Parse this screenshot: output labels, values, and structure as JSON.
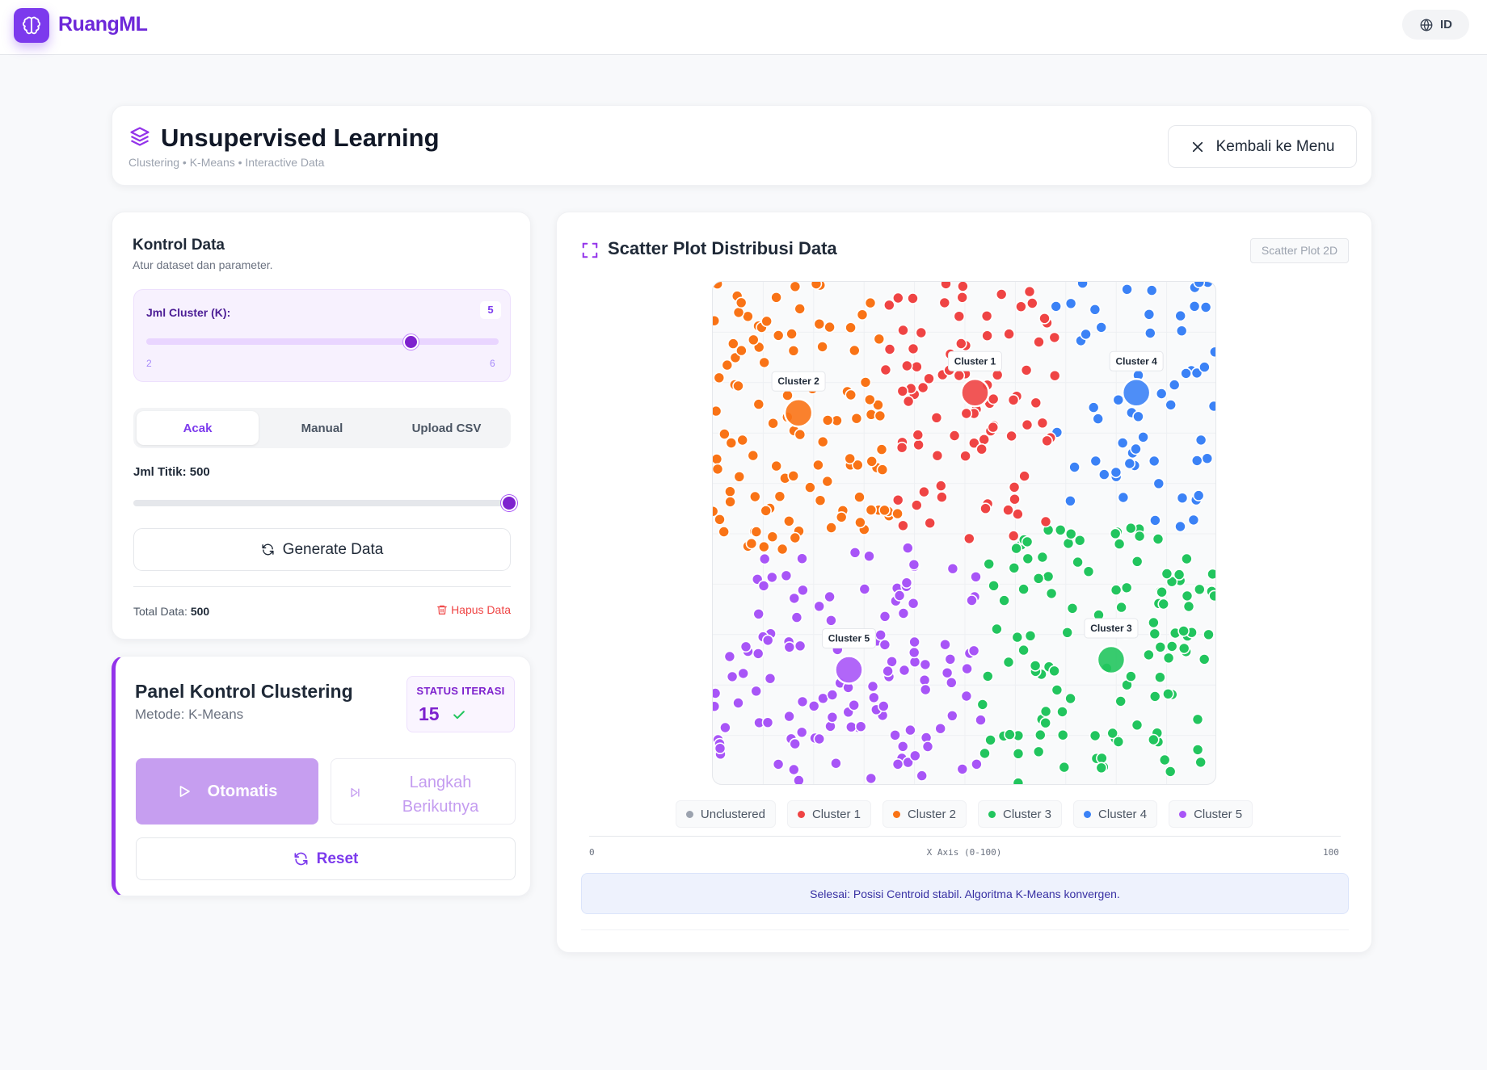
{
  "app": {
    "brand": "RuangML",
    "lang": "ID"
  },
  "header": {
    "title": "Unsupervised Learning",
    "subtitle": "Clustering • K-Means • Interactive Data",
    "back_label": "Kembali ke Menu"
  },
  "data_panel": {
    "title": "Kontrol Data",
    "subtitle": "Atur dataset dan parameter.",
    "k_label": "Jml Cluster (K):",
    "k_value": "5",
    "k_min": "2",
    "k_max": "6",
    "k_slider": {
      "min": 2,
      "max": 6,
      "value": 5
    },
    "tabs": [
      {
        "label": "Acak",
        "active": true
      },
      {
        "label": "Manual",
        "active": false
      },
      {
        "label": "Upload CSV",
        "active": false
      }
    ],
    "points_label": "Jml Titik: 500",
    "points_slider": {
      "fraction": 1.0
    },
    "generate_label": "Generate Data",
    "total_label": "Total Data:",
    "total_value": "500",
    "delete_label": "Hapus Data"
  },
  "cluster_panel": {
    "title": "Panel Kontrol Clustering",
    "method": "Metode: K-Means",
    "status_label": "STATUS ITERASI",
    "status_value": "15",
    "auto_label": "Otomatis",
    "step_label": "Langkah Berikutnya",
    "reset_label": "Reset"
  },
  "scatter": {
    "title": "Scatter Plot Distribusi Data",
    "badge": "Scatter Plot 2D",
    "legend": [
      {
        "label": "Unclustered",
        "color": "#9ca3af"
      },
      {
        "label": "Cluster 1",
        "color": "#ef4444"
      },
      {
        "label": "Cluster 2",
        "color": "#f97316"
      },
      {
        "label": "Cluster 3",
        "color": "#22c55e"
      },
      {
        "label": "Cluster 4",
        "color": "#3b82f6"
      },
      {
        "label": "Cluster 5",
        "color": "#a855f7"
      }
    ],
    "axis_min": "0",
    "axis_label": "X Axis (0-100)",
    "axis_max": "100",
    "status_message": "Selesai: Posisi Centroid stabil. Algoritma K-Means konvergen."
  },
  "chart_data": {
    "type": "scatter",
    "xlim": [
      0,
      100
    ],
    "ylim": [
      0,
      100
    ],
    "xlabel": "X Axis (0-100)",
    "grid": true,
    "point_count": 500,
    "series": [
      {
        "name": "Cluster 1",
        "color": "#ef4444",
        "centroid": {
          "x": 52,
          "y": 78
        }
      },
      {
        "name": "Cluster 2",
        "color": "#f97316",
        "centroid": {
          "x": 17,
          "y": 74
        }
      },
      {
        "name": "Cluster 3",
        "color": "#22c55e",
        "centroid": {
          "x": 79,
          "y": 25
        }
      },
      {
        "name": "Cluster 4",
        "color": "#3b82f6",
        "centroid": {
          "x": 84,
          "y": 78
        }
      },
      {
        "name": "Cluster 5",
        "color": "#a855f7",
        "centroid": {
          "x": 27,
          "y": 23
        }
      }
    ]
  }
}
